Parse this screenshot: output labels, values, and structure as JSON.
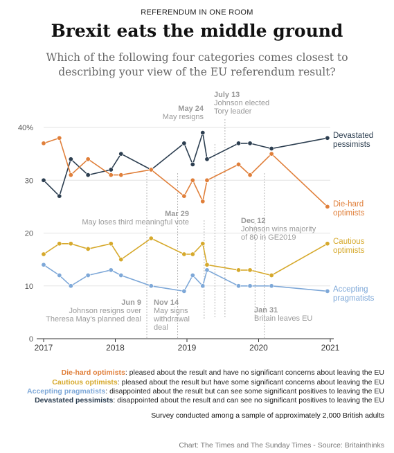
{
  "header": {
    "kicker": "REFERENDUM IN ONE ROOM",
    "title": "Brexit eats the middle ground",
    "subtitle": "Which of the following four categories comes closest to describing your view of the EU referendum result?"
  },
  "chart_data": {
    "type": "line",
    "x_axis": {
      "min": 2017.0,
      "max": 2021.0,
      "ticks": [
        "2017",
        "2018",
        "2019",
        "2020",
        "2021"
      ]
    },
    "y_axis": {
      "min": 0,
      "max": 40,
      "ticks": [
        "0",
        "10",
        "20",
        "30",
        "40%"
      ]
    },
    "grid": "horizontal",
    "series": [
      {
        "name": "Devastated pessimists",
        "label_lines": [
          "Devastated",
          "pessimists"
        ],
        "color": "#2c3e50",
        "points": [
          [
            2017.0,
            30
          ],
          [
            2017.22,
            27
          ],
          [
            2017.38,
            34
          ],
          [
            2017.62,
            31
          ],
          [
            2017.94,
            32
          ],
          [
            2018.08,
            35
          ],
          [
            2018.5,
            32
          ],
          [
            2018.96,
            37
          ],
          [
            2019.08,
            33
          ],
          [
            2019.22,
            39
          ],
          [
            2019.28,
            34
          ],
          [
            2019.72,
            37
          ],
          [
            2019.88,
            37
          ],
          [
            2020.18,
            36
          ],
          [
            2020.96,
            38
          ]
        ]
      },
      {
        "name": "Die-hard optimists",
        "label_lines": [
          "Die-hard",
          "optimists"
        ],
        "color": "#e07f3a",
        "points": [
          [
            2017.0,
            37
          ],
          [
            2017.22,
            38
          ],
          [
            2017.38,
            31
          ],
          [
            2017.62,
            34
          ],
          [
            2017.94,
            31
          ],
          [
            2018.08,
            31
          ],
          [
            2018.5,
            32
          ],
          [
            2018.96,
            27
          ],
          [
            2019.08,
            30
          ],
          [
            2019.22,
            26
          ],
          [
            2019.28,
            30
          ],
          [
            2019.72,
            33
          ],
          [
            2019.88,
            31
          ],
          [
            2020.18,
            35
          ],
          [
            2020.96,
            25
          ]
        ]
      },
      {
        "name": "Cautious optimists",
        "label_lines": [
          "Cautious",
          "optimists"
        ],
        "color": "#d6a92c",
        "points": [
          [
            2017.0,
            16
          ],
          [
            2017.22,
            18
          ],
          [
            2017.38,
            18
          ],
          [
            2017.62,
            17
          ],
          [
            2017.94,
            18
          ],
          [
            2018.08,
            15
          ],
          [
            2018.5,
            19
          ],
          [
            2018.96,
            16
          ],
          [
            2019.08,
            16
          ],
          [
            2019.22,
            18
          ],
          [
            2019.28,
            14
          ],
          [
            2019.72,
            13
          ],
          [
            2019.88,
            13
          ],
          [
            2020.18,
            12
          ],
          [
            2020.96,
            18
          ]
        ]
      },
      {
        "name": "Accepting pragmatists",
        "label_lines": [
          "Accepting",
          "pragmatists"
        ],
        "color": "#7ea8d8",
        "points": [
          [
            2017.0,
            14
          ],
          [
            2017.22,
            12
          ],
          [
            2017.38,
            10
          ],
          [
            2017.62,
            12
          ],
          [
            2017.94,
            13
          ],
          [
            2018.08,
            12
          ],
          [
            2018.5,
            10
          ],
          [
            2018.96,
            9
          ],
          [
            2019.08,
            12
          ],
          [
            2019.22,
            10
          ],
          [
            2019.28,
            13
          ],
          [
            2019.72,
            10
          ],
          [
            2019.88,
            10
          ],
          [
            2020.18,
            10
          ],
          [
            2020.96,
            9
          ]
        ]
      }
    ],
    "events": [
      {
        "date": "May 24",
        "lines": [
          "May resigns"
        ]
      },
      {
        "date": "July 13",
        "lines": [
          "Johnson elected",
          "Tory leader"
        ]
      },
      {
        "date": "Mar 29",
        "lines": [
          "May loses third meaningful vote"
        ]
      },
      {
        "date": "Dec 12",
        "lines": [
          "Johnson wins majority",
          "of 80 in GE2019"
        ]
      },
      {
        "date": "Jun 9",
        "lines": [
          "Johnson resigns over",
          "Theresa May's planned deal"
        ]
      },
      {
        "date": "Nov 14",
        "lines": [
          "May signs",
          "withdrawal",
          "deal"
        ]
      },
      {
        "date": "Jan 31",
        "lines": [
          "Britain leaves EU"
        ]
      }
    ]
  },
  "definitions": [
    {
      "term": "Die-hard optimists",
      "text": ": pleased about the result and have no significant concerns about leaving the EU",
      "color": "#e07f3a"
    },
    {
      "term": "Cautious optimists",
      "text": ": pleased about the result but have some significant concerns about leaving the EU",
      "color": "#d6a92c"
    },
    {
      "term": "Accepting pragmatists",
      "text": ": disappointed about the result but can see some significant positives to leaving the EU",
      "color": "#7ea8d8"
    },
    {
      "term": "Devastated pessimists",
      "text": ": disappointed about the result and can see no significant positives to leaving the EU",
      "color": "#2c3e50"
    }
  ],
  "footer": {
    "survey": "Survey conducted among a sample of approximately 2,000 British adults",
    "source": "Chart: The Times and The Sunday Times - Source: Britainthinks"
  }
}
